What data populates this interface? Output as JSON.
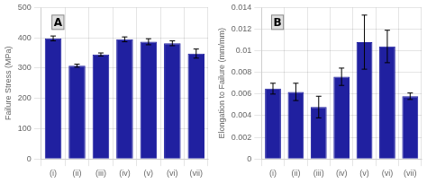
{
  "chart_data": [
    {
      "type": "bar",
      "categories": [
        "(i)",
        "(ii)",
        "(iii)",
        "(iv)",
        "(v)",
        "(vi)",
        "(vii)"
      ],
      "values": [
        398,
        308,
        345,
        395,
        387,
        382,
        348
      ],
      "errors": [
        8,
        5,
        5,
        8,
        10,
        8,
        15
      ],
      "color": "#2020A0",
      "y_label": "Failure Stress (MPa)",
      "ylim": [
        0,
        500
      ],
      "yticks": [
        0,
        100,
        200,
        300,
        400,
        500
      ],
      "annotation": "A",
      "grid": true
    },
    {
      "type": "bar",
      "categories": [
        "(i)",
        "(ii)",
        "(iii)",
        "(iv)",
        "(v)",
        "(vi)",
        "(vii)"
      ],
      "values": [
        0.0065,
        0.0062,
        0.0048,
        0.0076,
        0.0108,
        0.0104,
        0.0058
      ],
      "errors": [
        0.0005,
        0.0008,
        0.001,
        0.0008,
        0.0025,
        0.0015,
        0.0003
      ],
      "color": "#2020A0",
      "y_label": "Elongation to Failure (mm/mm)",
      "ylim": [
        0,
        0.014
      ],
      "yticks": [
        0,
        0.002,
        0.004,
        0.006,
        0.008,
        0.01,
        0.012,
        0.014
      ],
      "annotation": "B",
      "grid": true
    }
  ]
}
